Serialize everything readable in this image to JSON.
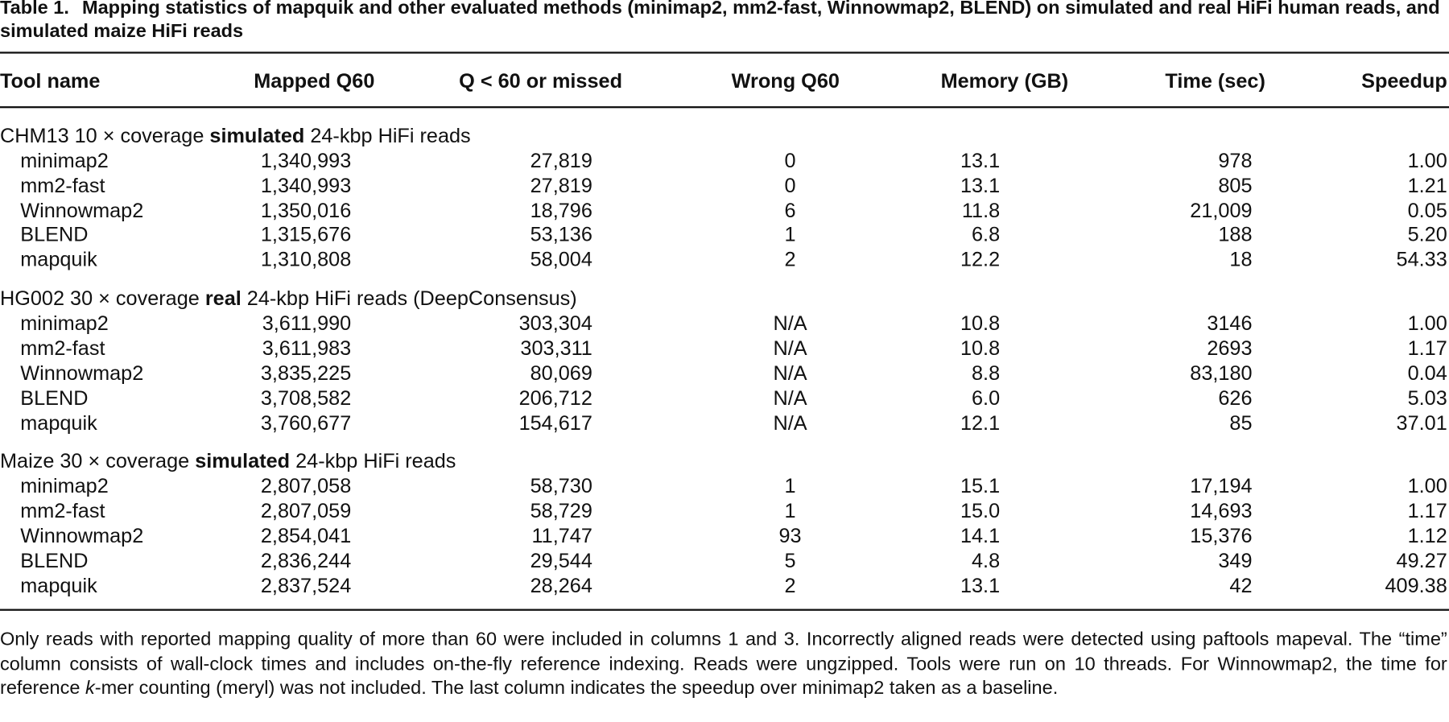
{
  "table": {
    "label": "Table 1.",
    "title": "Mapping statistics of mapquik and other evaluated methods (minimap2, mm2-fast, Winnowmap2, BLEND) on simulated and real HiFi human reads, and simulated maize HiFi reads",
    "columns": [
      "Tool name",
      "Mapped Q60",
      "Q < 60 or missed",
      "Wrong Q60",
      "Memory (GB)",
      "Time (sec)",
      "Speedup"
    ],
    "sections": [
      {
        "heading": [
          {
            "text": "CHM13 10 × coverage "
          },
          {
            "text": "simulated",
            "bold": true
          },
          {
            "text": " 24-kbp HiFi reads"
          }
        ],
        "rows": [
          [
            "minimap2",
            "1,340,993",
            "27,819",
            "0",
            "13.1",
            "978",
            "1.00"
          ],
          [
            "mm2-fast",
            "1,340,993",
            "27,819",
            "0",
            "13.1",
            "805",
            "1.21"
          ],
          [
            "Winnowmap2",
            "1,350,016",
            "18,796",
            "6",
            "11.8",
            "21,009",
            "0.05"
          ],
          [
            "BLEND",
            "1,315,676",
            "53,136",
            "1",
            "6.8",
            "188",
            "5.20"
          ],
          [
            "mapquik",
            "1,310,808",
            "58,004",
            "2",
            "12.2",
            "18",
            "54.33"
          ]
        ]
      },
      {
        "heading": [
          {
            "text": "HG002 30 × coverage "
          },
          {
            "text": "real",
            "bold": true
          },
          {
            "text": " 24-kbp HiFi reads (DeepConsensus)"
          }
        ],
        "rows": [
          [
            "minimap2",
            "3,611,990",
            "303,304",
            "N/A",
            "10.8",
            "3146",
            "1.00"
          ],
          [
            "mm2-fast",
            "3,611,983",
            "303,311",
            "N/A",
            "10.8",
            "2693",
            "1.17"
          ],
          [
            "Winnowmap2",
            "3,835,225",
            "80,069",
            "N/A",
            "8.8",
            "83,180",
            "0.04"
          ],
          [
            "BLEND",
            "3,708,582",
            "206,712",
            "N/A",
            "6.0",
            "626",
            "5.03"
          ],
          [
            "mapquik",
            "3,760,677",
            "154,617",
            "N/A",
            "12.1",
            "85",
            "37.01"
          ]
        ]
      },
      {
        "heading": [
          {
            "text": "Maize 30 × coverage "
          },
          {
            "text": "simulated",
            "bold": true
          },
          {
            "text": " 24-kbp HiFi reads"
          }
        ],
        "rows": [
          [
            "minimap2",
            "2,807,058",
            "58,730",
            "1",
            "15.1",
            "17,194",
            "1.00"
          ],
          [
            "mm2-fast",
            "2,807,059",
            "58,729",
            "1",
            "15.0",
            "14,693",
            "1.17"
          ],
          [
            "Winnowmap2",
            "2,854,041",
            "11,747",
            "93",
            "14.1",
            "15,376",
            "1.12"
          ],
          [
            "BLEND",
            "2,836,244",
            "29,544",
            "5",
            "4.8",
            "349",
            "49.27"
          ],
          [
            "mapquik",
            "2,837,524",
            "28,264",
            "2",
            "13.1",
            "42",
            "409.38"
          ]
        ]
      }
    ],
    "footnote": [
      {
        "text": "Only reads with reported mapping quality of more than 60 were included in columns 1 and 3. Incorrectly aligned reads were detected using paftools mapeval. The “time” column consists of wall-clock times and includes on-the-fly reference indexing. Reads were ungzipped. Tools were run on 10 threads. For Winnowmap2, the time for reference "
      },
      {
        "text": "k",
        "italic": true
      },
      {
        "text": "-mer counting (meryl) was not included. The last column indicates the speedup over minimap2 taken as a baseline."
      }
    ]
  }
}
